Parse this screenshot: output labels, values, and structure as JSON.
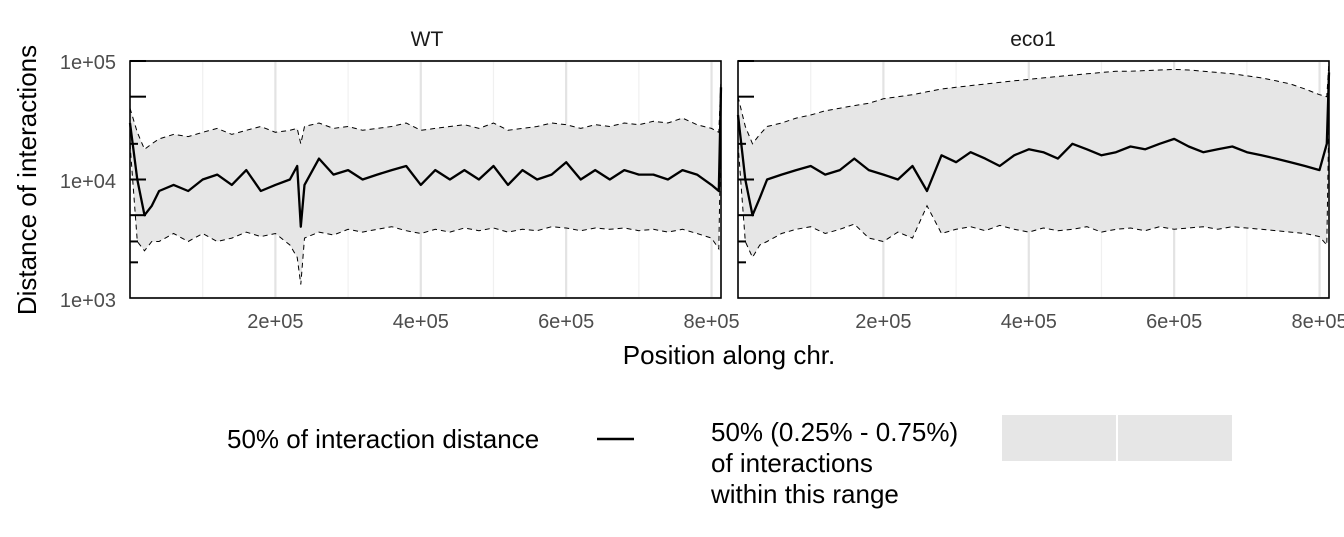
{
  "chart_data": {
    "type": "line",
    "xlabel": "Position along chr.",
    "ylabel": "Distance of interactions",
    "y_scale": "log10",
    "ylim": [
      1000,
      100000
    ],
    "xlim": [
      0,
      813000
    ],
    "x_ticks": [
      200000,
      400000,
      600000,
      800000
    ],
    "x_tick_labels": [
      "2e+05",
      "4e+05",
      "6e+05",
      "8e+05"
    ],
    "y_ticks": [
      1000,
      10000,
      100000
    ],
    "y_tick_labels": [
      "1e+03",
      "1e+04",
      "1e+05"
    ],
    "grid": true,
    "legend_position": "bottom",
    "legend": {
      "line_label": "50% of interaction distance",
      "ribbon_label_lines": [
        "50% (0.25% - 0.75%)",
        "of interactions",
        "within this range"
      ]
    },
    "colors": {
      "ribbon": "#e6e6e6",
      "line": "#000000",
      "grid": "#e3e3e3"
    },
    "panels": [
      {
        "name": "WT",
        "x": [
          0,
          10000,
          20000,
          30000,
          40000,
          60000,
          80000,
          100000,
          120000,
          140000,
          160000,
          180000,
          200000,
          220000,
          230000,
          235000,
          240000,
          260000,
          280000,
          300000,
          320000,
          340000,
          360000,
          380000,
          400000,
          420000,
          440000,
          460000,
          480000,
          500000,
          520000,
          540000,
          560000,
          580000,
          600000,
          620000,
          640000,
          660000,
          680000,
          700000,
          720000,
          740000,
          760000,
          780000,
          800000,
          810000,
          813000
        ],
        "median": [
          30000,
          10000,
          5000,
          6000,
          8000,
          9000,
          8000,
          10000,
          11000,
          9000,
          12000,
          8000,
          9000,
          10000,
          13000,
          4000,
          9000,
          15000,
          11000,
          12000,
          10000,
          11000,
          12000,
          13000,
          9000,
          12000,
          10000,
          12000,
          10000,
          13000,
          9000,
          12000,
          10000,
          11000,
          14000,
          10000,
          12000,
          10000,
          12000,
          11000,
          11000,
          10000,
          12000,
          11000,
          9000,
          8000,
          60000
        ],
        "upper": [
          40000,
          25000,
          18000,
          20000,
          22000,
          24000,
          23000,
          25000,
          27000,
          24000,
          26000,
          28000,
          25000,
          26000,
          27000,
          20000,
          28000,
          30000,
          27000,
          28000,
          26000,
          27000,
          28000,
          30000,
          26000,
          27000,
          28000,
          29000,
          27000,
          30000,
          26000,
          27000,
          28000,
          30000,
          29000,
          27000,
          29000,
          28000,
          30000,
          29000,
          31000,
          30000,
          33000,
          29000,
          27000,
          25000,
          70000
        ],
        "lower": [
          20000,
          3000,
          2500,
          3000,
          3000,
          3500,
          3000,
          3500,
          3000,
          3200,
          3600,
          3300,
          3500,
          2800,
          2200,
          1300,
          3200,
          3600,
          3400,
          3800,
          3600,
          3800,
          4000,
          3700,
          3500,
          3800,
          3600,
          3900,
          3700,
          3900,
          3600,
          3800,
          3700,
          4000,
          3900,
          3700,
          3900,
          3800,
          3900,
          3700,
          3800,
          3600,
          3800,
          3500,
          3200,
          2600,
          30000
        ]
      },
      {
        "name": "eco1",
        "x": [
          0,
          10000,
          20000,
          30000,
          40000,
          60000,
          80000,
          100000,
          120000,
          140000,
          160000,
          180000,
          200000,
          220000,
          240000,
          260000,
          280000,
          300000,
          320000,
          340000,
          360000,
          380000,
          400000,
          420000,
          440000,
          460000,
          480000,
          500000,
          520000,
          540000,
          560000,
          580000,
          600000,
          620000,
          640000,
          660000,
          680000,
          700000,
          720000,
          740000,
          760000,
          780000,
          800000,
          810000,
          813000
        ],
        "median": [
          35000,
          10000,
          5000,
          7000,
          10000,
          11000,
          12000,
          13000,
          11000,
          12000,
          15000,
          12000,
          11000,
          10000,
          13000,
          8000,
          16000,
          14000,
          17000,
          15000,
          13000,
          16000,
          18000,
          17000,
          15000,
          20000,
          18000,
          16000,
          17000,
          19000,
          18000,
          20000,
          22000,
          19000,
          17000,
          18000,
          19000,
          17000,
          16000,
          15000,
          14000,
          13000,
          12000,
          20000,
          80000
        ],
        "upper": [
          50000,
          28000,
          20000,
          24000,
          28000,
          30000,
          33000,
          35000,
          38000,
          40000,
          42000,
          44000,
          48000,
          50000,
          52000,
          55000,
          58000,
          60000,
          62000,
          64000,
          66000,
          68000,
          70000,
          72000,
          74000,
          76000,
          78000,
          80000,
          82000,
          82000,
          83000,
          84000,
          85000,
          84000,
          82000,
          80000,
          78000,
          75000,
          72000,
          68000,
          64000,
          58000,
          52000,
          50000,
          100000
        ],
        "lower": [
          20000,
          3000,
          2200,
          2800,
          3000,
          3500,
          3800,
          4000,
          3500,
          3800,
          4200,
          3200,
          3000,
          3600,
          3200,
          6000,
          3500,
          3800,
          4000,
          3700,
          4100,
          3800,
          3600,
          3900,
          3700,
          3800,
          4000,
          3600,
          3800,
          3900,
          3700,
          4000,
          3800,
          3900,
          4000,
          3800,
          4000,
          3900,
          3800,
          3700,
          3600,
          3500,
          3300,
          2800,
          40000
        ]
      }
    ]
  }
}
